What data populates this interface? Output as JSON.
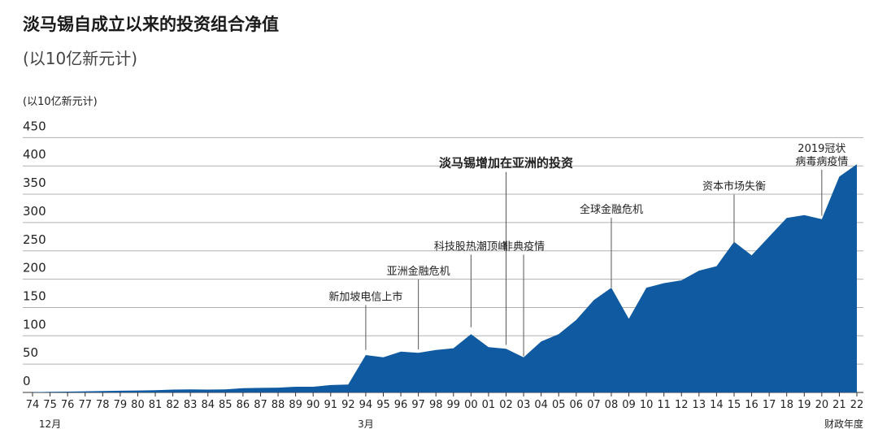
{
  "chart_data": {
    "type": "area",
    "title": "淡马锡自成立以来的投资组合净值",
    "subtitle": "(以10亿新元计)",
    "ylabel": "(以10亿新元计)",
    "xlabel": "财政年度",
    "ylim": [
      0,
      450
    ],
    "yticks": [
      0,
      50,
      100,
      150,
      200,
      250,
      300,
      350,
      400,
      450
    ],
    "grid": true,
    "color": "#0f5aa0",
    "x_labels": [
      "74",
      "75",
      "76",
      "77",
      "78",
      "79",
      "80",
      "81",
      "82",
      "83",
      "84",
      "85",
      "86",
      "87",
      "88",
      "89",
      "90",
      "91",
      "92",
      "94",
      "95",
      "96",
      "97",
      "98",
      "99",
      "00",
      "01",
      "02",
      "03",
      "04",
      "05",
      "06",
      "07",
      "08",
      "09",
      "10",
      "11",
      "12",
      "13",
      "14",
      "15",
      "16",
      "17",
      "18",
      "19",
      "20",
      "21",
      "22"
    ],
    "sub_labels": [
      {
        "x": "75",
        "text": "12月"
      },
      {
        "x": "94",
        "text": "3月"
      },
      {
        "x": "22",
        "text": "财政年度"
      }
    ],
    "values": [
      0.4,
      1,
      1.5,
      2,
      2.5,
      3,
      3.5,
      4,
      5,
      5.5,
      5,
      5.5,
      7.5,
      8,
      8.5,
      10,
      10,
      13,
      14,
      66,
      62,
      72,
      70,
      75,
      78,
      103,
      80,
      77,
      62,
      90,
      103,
      128,
      163,
      185,
      130,
      185,
      193,
      198,
      215,
      223,
      266,
      242,
      275,
      308,
      313,
      306,
      381,
      403
    ],
    "annotations": [
      {
        "x": "94",
        "value": 75,
        "label": "新加坡电信上市",
        "label_value": 163
      },
      {
        "x": "97",
        "value": 76,
        "label": "亚洲金融危机",
        "label_value": 208
      },
      {
        "x": "00",
        "value": 115,
        "label": "科技股热潮顶峰",
        "label_value": 252
      },
      {
        "x": "02",
        "value": 84,
        "label": "淡马锡增加在亚洲的投资",
        "label_value": 398,
        "bold": true
      },
      {
        "x": "03",
        "value": 64,
        "label": "非典疫情",
        "label_value": 252
      },
      {
        "x": "08",
        "value": 185,
        "label": "全球金融危机",
        "label_value": 317
      },
      {
        "x": "15",
        "value": 262,
        "label": "资本市场失衡",
        "label_value": 358
      },
      {
        "x": "20",
        "value": 312,
        "label": "2019冠状\n病毒病疫情",
        "label_value": 402
      }
    ]
  }
}
